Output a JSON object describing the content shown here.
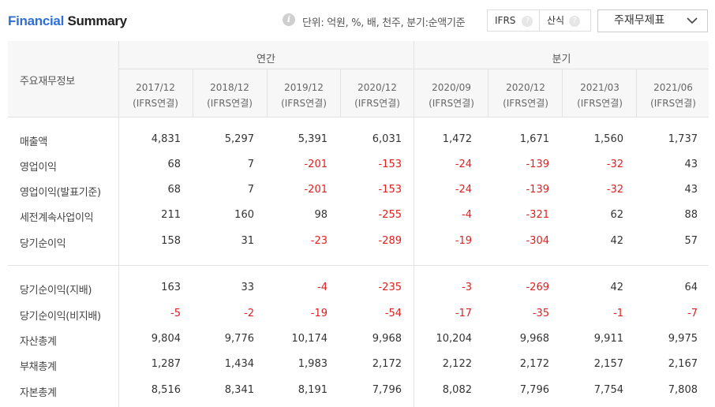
{
  "header": {
    "title_part1": "Financial",
    "title_part2": "Summary",
    "info_icon": "info-icon",
    "unit_text": "단위: 억원, %, 배, 천주, 분기:순액기준",
    "toggle": [
      {
        "label": "IFRS",
        "help": "?"
      },
      {
        "label": "산식",
        "help": "?"
      }
    ],
    "dropdown_label": "주재무제표",
    "dropdown_icon": "chevron-down-icon"
  },
  "table": {
    "row_header_title": "주요재무정보",
    "groups": [
      "연간",
      "분기"
    ],
    "columns": [
      {
        "period": "2017/12",
        "basis": "(IFRS연결)"
      },
      {
        "period": "2018/12",
        "basis": "(IFRS연결)"
      },
      {
        "period": "2019/12",
        "basis": "(IFRS연결)"
      },
      {
        "period": "2020/12",
        "basis": "(IFRS연결)"
      },
      {
        "period": "2020/09",
        "basis": "(IFRS연결)"
      },
      {
        "period": "2020/12",
        "basis": "(IFRS연결)"
      },
      {
        "period": "2021/03",
        "basis": "(IFRS연결)"
      },
      {
        "period": "2021/06",
        "basis": "(IFRS연결)"
      }
    ],
    "rows": [
      {
        "label": "매출액",
        "values": [
          "4,831",
          "5,297",
          "5,391",
          "6,031",
          "1,472",
          "1,671",
          "1,560",
          "1,737"
        ]
      },
      {
        "label": "영업이익",
        "values": [
          "68",
          "7",
          "-201",
          "-153",
          "-24",
          "-139",
          "-32",
          "43"
        ]
      },
      {
        "label": "영업이익(발표기준)",
        "values": [
          "68",
          "7",
          "-201",
          "-153",
          "-24",
          "-139",
          "-32",
          "43"
        ]
      },
      {
        "label": "세전계속사업이익",
        "values": [
          "211",
          "160",
          "98",
          "-255",
          "-4",
          "-321",
          "62",
          "88"
        ]
      },
      {
        "label": "당기순이익",
        "values": [
          "158",
          "31",
          "-23",
          "-289",
          "-19",
          "-304",
          "42",
          "57"
        ]
      },
      {
        "label": "당기순이익(지배)",
        "values": [
          "163",
          "33",
          "-4",
          "-235",
          "-3",
          "-269",
          "42",
          "64"
        ]
      },
      {
        "label": "당기순이익(비지배)",
        "values": [
          "-5",
          "-2",
          "-19",
          "-54",
          "-17",
          "-35",
          "-1",
          "-7"
        ]
      },
      {
        "label": "자산총계",
        "values": [
          "9,804",
          "9,776",
          "10,174",
          "9,968",
          "10,204",
          "9,968",
          "9,911",
          "9,975"
        ]
      },
      {
        "label": "부채총계",
        "values": [
          "1,287",
          "1,434",
          "1,983",
          "2,172",
          "2,122",
          "2,172",
          "2,157",
          "2,167"
        ]
      },
      {
        "label": "자본총계",
        "values": [
          "8,516",
          "8,341",
          "8,191",
          "7,796",
          "8,082",
          "7,796",
          "7,754",
          "7,808"
        ]
      }
    ]
  },
  "colors": {
    "title_accent": "#2f6fd6",
    "negative": "#e02020",
    "header_bg": "#f7f7f7",
    "border": "#e3e3e3"
  }
}
